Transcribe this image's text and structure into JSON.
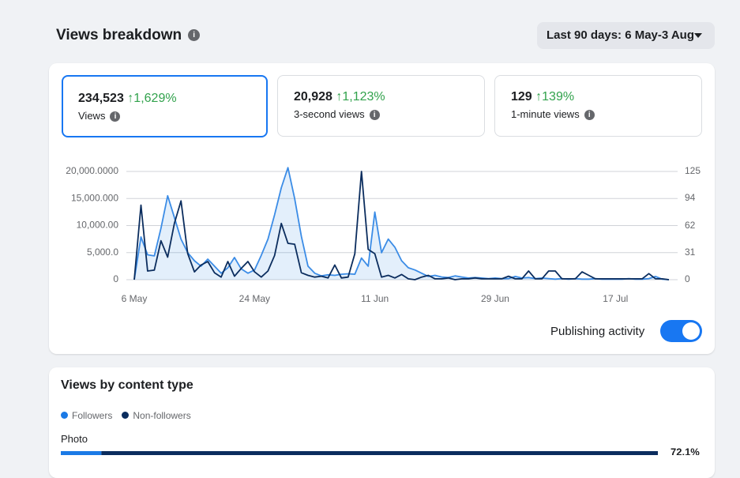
{
  "header": {
    "title": "Views breakdown",
    "date_range": "Last 90 days: 6 May-3 Aug"
  },
  "stats": [
    {
      "value": "234,523",
      "change": "1,629%",
      "label": "Views"
    },
    {
      "value": "20,928",
      "change": "1,123%",
      "label": "3-second views"
    },
    {
      "value": "129",
      "change": "139%",
      "label": "1-minute views"
    }
  ],
  "controls": {
    "publishing_activity": "Publishing activity",
    "publishing_activity_on": true
  },
  "chart_data": [
    {
      "type": "line",
      "categories": [
        "6 May",
        null,
        null,
        null,
        null,
        null,
        null,
        null,
        null,
        null,
        null,
        null,
        null,
        null,
        null,
        null,
        null,
        null,
        "24 May",
        null,
        null,
        null,
        null,
        null,
        null,
        null,
        null,
        null,
        null,
        null,
        null,
        null,
        null,
        null,
        null,
        null,
        "11 Jun",
        null,
        null,
        null,
        null,
        null,
        null,
        null,
        null,
        null,
        null,
        null,
        null,
        null,
        null,
        null,
        null,
        null,
        "29 Jun",
        null,
        null,
        null,
        null,
        null,
        null,
        null,
        null,
        null,
        null,
        null,
        null,
        null,
        null,
        null,
        null,
        null,
        "17 Jul",
        null,
        null,
        null,
        null,
        null,
        null,
        null,
        null
      ],
      "series": [
        {
          "color": "#3b8ce6",
          "axis": "y",
          "fill": true,
          "values": [
            0,
            7900,
            4600,
            4400,
            9500,
            15500,
            11500,
            7500,
            5000,
            3500,
            2500,
            3800,
            2500,
            1200,
            2200,
            4100,
            2000,
            1200,
            1800,
            4500,
            7500,
            12000,
            17000,
            20700,
            15000,
            8000,
            2500,
            1200,
            700,
            900,
            800,
            1000,
            1100,
            1000,
            4000,
            2500,
            12500,
            5000,
            7500,
            6000,
            3500,
            2200,
            1800,
            1200,
            600,
            800,
            500,
            400,
            700,
            500,
            300,
            400,
            300,
            200,
            300,
            200,
            200,
            600,
            300,
            400,
            200,
            300,
            200,
            100,
            200,
            100,
            200,
            100,
            100,
            200,
            100,
            100,
            100,
            100,
            200,
            100,
            100,
            200,
            600,
            100,
            0
          ]
        },
        {
          "color": "#0b2d5e",
          "axis": "y2",
          "fill": false,
          "values": [
            0,
            86,
            10,
            11,
            45,
            26,
            65,
            91,
            30,
            9,
            17,
            21,
            8,
            3,
            21,
            4,
            13,
            21,
            9,
            3,
            10,
            28,
            65,
            42,
            41,
            8,
            5,
            3,
            4,
            2,
            17,
            2,
            3,
            30,
            125,
            35,
            30,
            3,
            5,
            2,
            6,
            1,
            0,
            3,
            5,
            1,
            1,
            2,
            0,
            1,
            1,
            2,
            1,
            1,
            1,
            1,
            4,
            1,
            1,
            10,
            1,
            1,
            10,
            10,
            1,
            1,
            1,
            9,
            5,
            1,
            1,
            1,
            1,
            1,
            1,
            1,
            1,
            7,
            1,
            1,
            0
          ]
        }
      ],
      "ylim": [
        0,
        20000
      ],
      "yticks": [
        {
          "value": 20000,
          "label": "20,000.0000"
        },
        {
          "value": 15000,
          "label": "15,000.000"
        },
        {
          "value": 10000,
          "label": "10,000.00"
        },
        {
          "value": 5000,
          "label": "5,000.0"
        },
        0
      ],
      "y2lim": [
        0,
        125
      ],
      "y2ticks": [
        125,
        94,
        62,
        31,
        0
      ],
      "grid": true
    },
    {
      "type": "stacked_hbar",
      "title": "Views by content type",
      "categories": [
        "Photo"
      ],
      "series": [
        {
          "name": "Followers",
          "color": "#1b7ae6",
          "values": [
            4.9
          ]
        },
        {
          "name": "Non-followers",
          "color": "#0b2d5e",
          "values": [
            67.2
          ]
        }
      ],
      "totals": [
        72.1
      ],
      "total_labels": [
        "72.1%"
      ],
      "xlim": [
        0,
        72.1
      ]
    }
  ]
}
